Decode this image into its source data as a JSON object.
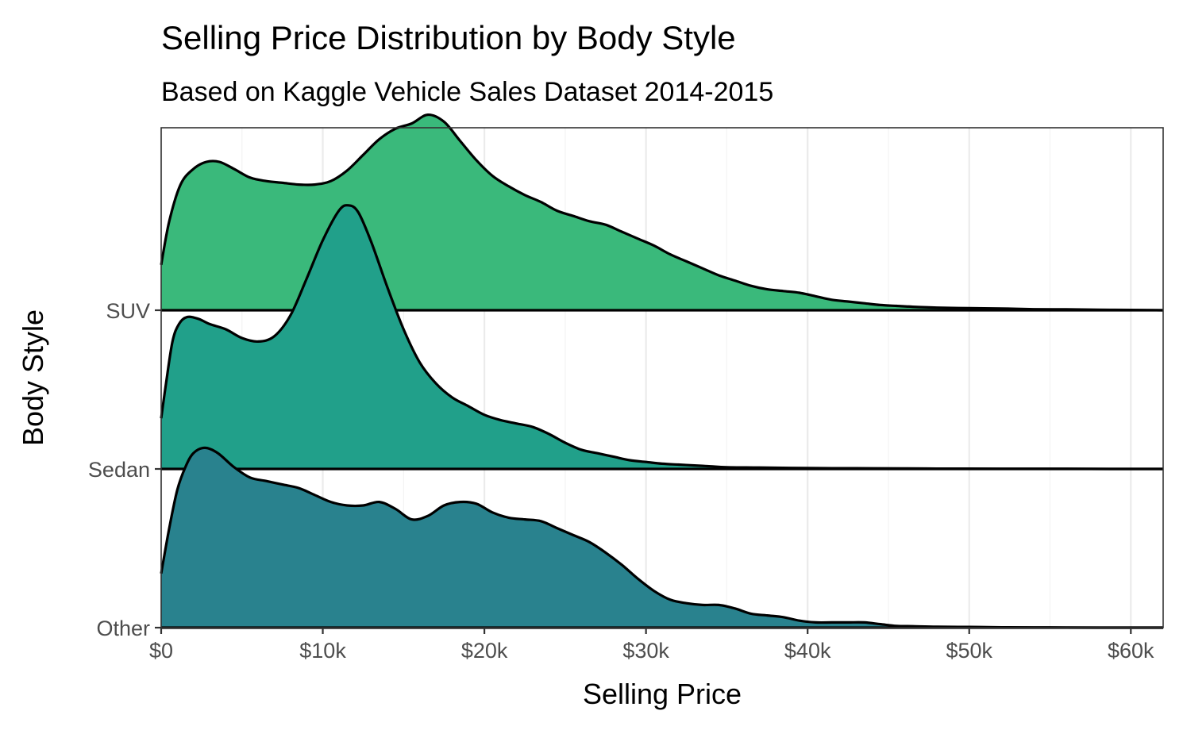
{
  "chart_data": {
    "type": "ridgeline",
    "title": "Selling Price Distribution by Body Style",
    "subtitle": "Based on Kaggle Vehicle Sales Dataset 2014-2015",
    "xlabel": "Selling Price",
    "ylabel": "Body Style",
    "xlim": [
      0,
      62000
    ],
    "x_ticks": [
      0,
      10000,
      20000,
      30000,
      40000,
      50000,
      60000
    ],
    "x_tick_labels": [
      "$0",
      "$10k",
      "$20k",
      "$30k",
      "$40k",
      "$50k",
      "$60k"
    ],
    "grid": true,
    "density_scale": 1.1,
    "series": [
      {
        "name": "Other",
        "color": "#29828e",
        "points": [
          [
            0,
            0.31
          ],
          [
            500,
            0.57
          ],
          [
            1000,
            0.79
          ],
          [
            1500,
            0.92
          ],
          [
            2000,
            1.0
          ],
          [
            2700,
            1.03
          ],
          [
            3500,
            1.0
          ],
          [
            4500,
            0.92
          ],
          [
            5500,
            0.86
          ],
          [
            6500,
            0.84
          ],
          [
            7500,
            0.82
          ],
          [
            8500,
            0.8
          ],
          [
            9500,
            0.76
          ],
          [
            10500,
            0.72
          ],
          [
            11500,
            0.7
          ],
          [
            12500,
            0.7
          ],
          [
            13500,
            0.72
          ],
          [
            14500,
            0.68
          ],
          [
            15500,
            0.62
          ],
          [
            16500,
            0.64
          ],
          [
            17500,
            0.7
          ],
          [
            18500,
            0.72
          ],
          [
            19500,
            0.71
          ],
          [
            20500,
            0.66
          ],
          [
            21500,
            0.63
          ],
          [
            22500,
            0.62
          ],
          [
            23500,
            0.61
          ],
          [
            24500,
            0.57
          ],
          [
            25500,
            0.53
          ],
          [
            26500,
            0.49
          ],
          [
            27500,
            0.43
          ],
          [
            28500,
            0.36
          ],
          [
            29500,
            0.28
          ],
          [
            30500,
            0.21
          ],
          [
            31500,
            0.16
          ],
          [
            32500,
            0.14
          ],
          [
            33500,
            0.13
          ],
          [
            34500,
            0.13
          ],
          [
            35500,
            0.11
          ],
          [
            36500,
            0.08
          ],
          [
            37500,
            0.07
          ],
          [
            38500,
            0.06
          ],
          [
            39500,
            0.04
          ],
          [
            40500,
            0.03
          ],
          [
            41500,
            0.03
          ],
          [
            42500,
            0.03
          ],
          [
            43500,
            0.03
          ],
          [
            44500,
            0.02
          ],
          [
            45500,
            0.01
          ],
          [
            46500,
            0.008
          ],
          [
            48000,
            0.005
          ],
          [
            50000,
            0.004
          ],
          [
            52000,
            0.002
          ],
          [
            55000,
            0.001
          ],
          [
            58000,
            0.0
          ],
          [
            62000,
            0.0
          ]
        ]
      },
      {
        "name": "Sedan",
        "color": "#21a08a",
        "points": [
          [
            0,
            0.29
          ],
          [
            300,
            0.49
          ],
          [
            700,
            0.73
          ],
          [
            1100,
            0.83
          ],
          [
            1600,
            0.87
          ],
          [
            2300,
            0.86
          ],
          [
            3000,
            0.83
          ],
          [
            4000,
            0.8
          ],
          [
            5000,
            0.75
          ],
          [
            6000,
            0.73
          ],
          [
            7000,
            0.76
          ],
          [
            8000,
            0.88
          ],
          [
            9000,
            1.09
          ],
          [
            10000,
            1.31
          ],
          [
            11000,
            1.48
          ],
          [
            11600,
            1.51
          ],
          [
            12200,
            1.47
          ],
          [
            13000,
            1.3
          ],
          [
            14000,
            1.04
          ],
          [
            15000,
            0.8
          ],
          [
            16000,
            0.61
          ],
          [
            17000,
            0.49
          ],
          [
            18000,
            0.41
          ],
          [
            19000,
            0.36
          ],
          [
            20000,
            0.31
          ],
          [
            21000,
            0.28
          ],
          [
            22000,
            0.26
          ],
          [
            23000,
            0.24
          ],
          [
            24000,
            0.2
          ],
          [
            25000,
            0.15
          ],
          [
            26000,
            0.11
          ],
          [
            27000,
            0.09
          ],
          [
            28000,
            0.07
          ],
          [
            29000,
            0.05
          ],
          [
            30000,
            0.04
          ],
          [
            31000,
            0.03
          ],
          [
            32000,
            0.025
          ],
          [
            33000,
            0.02
          ],
          [
            34000,
            0.015
          ],
          [
            35000,
            0.01
          ],
          [
            37000,
            0.008
          ],
          [
            40000,
            0.005
          ],
          [
            43000,
            0.004
          ],
          [
            46000,
            0.003
          ],
          [
            48000,
            0.002
          ],
          [
            50000,
            0.002
          ],
          [
            53000,
            0.001
          ],
          [
            56000,
            0.001
          ],
          [
            59000,
            0.0
          ],
          [
            62000,
            0.0
          ]
        ]
      },
      {
        "name": "SUV",
        "color": "#3ab97b",
        "points": [
          [
            0,
            0.26
          ],
          [
            500,
            0.51
          ],
          [
            1200,
            0.72
          ],
          [
            2000,
            0.81
          ],
          [
            2800,
            0.85
          ],
          [
            3600,
            0.85
          ],
          [
            4500,
            0.81
          ],
          [
            5500,
            0.76
          ],
          [
            6500,
            0.74
          ],
          [
            7500,
            0.73
          ],
          [
            8500,
            0.72
          ],
          [
            9500,
            0.72
          ],
          [
            10500,
            0.74
          ],
          [
            11500,
            0.8
          ],
          [
            12500,
            0.89
          ],
          [
            13500,
            0.98
          ],
          [
            14500,
            1.04
          ],
          [
            15500,
            1.07
          ],
          [
            16500,
            1.12
          ],
          [
            17500,
            1.08
          ],
          [
            18500,
            0.97
          ],
          [
            19500,
            0.86
          ],
          [
            20500,
            0.77
          ],
          [
            21500,
            0.71
          ],
          [
            22500,
            0.66
          ],
          [
            23500,
            0.62
          ],
          [
            24500,
            0.57
          ],
          [
            25500,
            0.54
          ],
          [
            26500,
            0.51
          ],
          [
            27500,
            0.49
          ],
          [
            28500,
            0.45
          ],
          [
            29500,
            0.41
          ],
          [
            30500,
            0.37
          ],
          [
            31500,
            0.32
          ],
          [
            32500,
            0.28
          ],
          [
            33500,
            0.24
          ],
          [
            34500,
            0.2
          ],
          [
            35500,
            0.17
          ],
          [
            36500,
            0.14
          ],
          [
            37500,
            0.12
          ],
          [
            38500,
            0.11
          ],
          [
            39500,
            0.1
          ],
          [
            40500,
            0.08
          ],
          [
            41500,
            0.06
          ],
          [
            42500,
            0.05
          ],
          [
            43500,
            0.04
          ],
          [
            44500,
            0.03
          ],
          [
            45500,
            0.025
          ],
          [
            46500,
            0.02
          ],
          [
            48000,
            0.015
          ],
          [
            50000,
            0.012
          ],
          [
            52000,
            0.01
          ],
          [
            54000,
            0.006
          ],
          [
            56000,
            0.005
          ],
          [
            58000,
            0.003
          ],
          [
            60000,
            0.002
          ],
          [
            62000,
            0.0
          ]
        ]
      }
    ]
  }
}
